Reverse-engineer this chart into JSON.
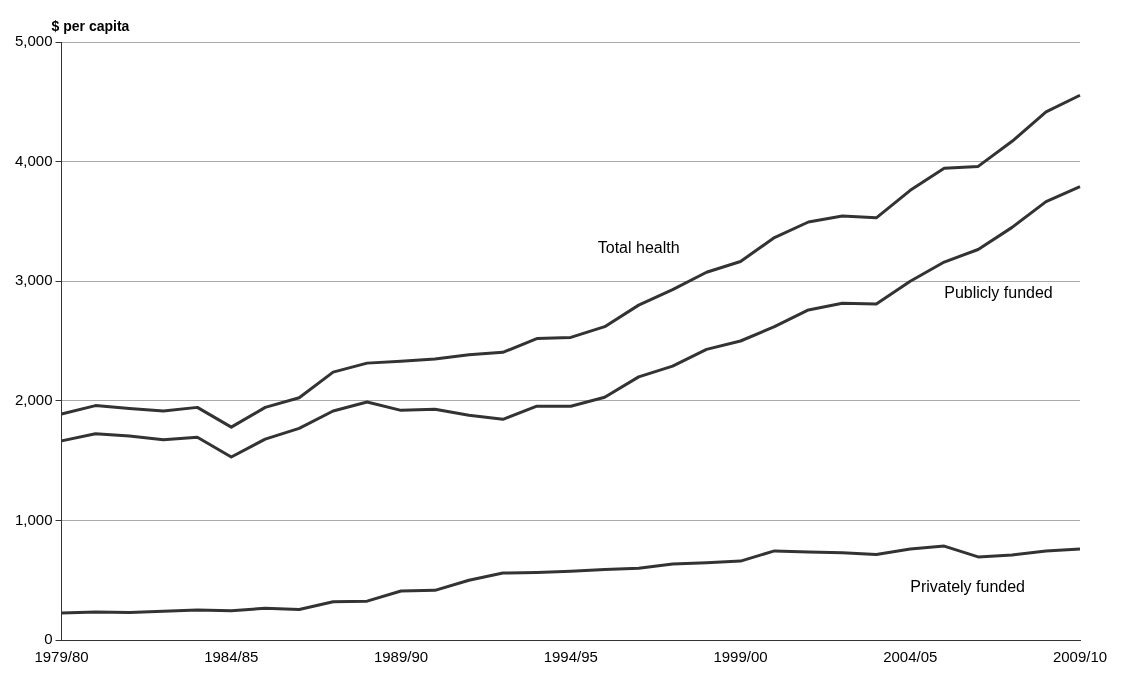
{
  "chart_data": {
    "type": "line",
    "ylabel": "$ per capita",
    "categories": [
      "1979/80",
      null,
      null,
      null,
      null,
      "1984/85",
      null,
      null,
      null,
      null,
      "1989/90",
      null,
      null,
      null,
      null,
      "1994/95",
      null,
      null,
      null,
      null,
      "1999/00",
      null,
      null,
      null,
      null,
      "2004/05",
      null,
      null,
      null,
      null,
      "2009/10"
    ],
    "series": [
      {
        "name": "Total health",
        "color": "#333333",
        "values": [
          1890,
          1960,
          1935,
          1915,
          1945,
          1780,
          1945,
          2025,
          2240,
          2315,
          2330,
          2350,
          2385,
          2405,
          2520,
          2530,
          2620,
          2800,
          2930,
          3075,
          3165,
          3365,
          3495,
          3545,
          3530,
          3760,
          3945,
          3960,
          4170,
          4415,
          4555
        ]
      },
      {
        "name": "Publicly funded",
        "color": "#333333",
        "values": [
          1665,
          1725,
          1705,
          1675,
          1695,
          1530,
          1680,
          1770,
          1915,
          1990,
          1920,
          1930,
          1880,
          1845,
          1955,
          1955,
          2030,
          2200,
          2290,
          2430,
          2500,
          2620,
          2760,
          2815,
          2810,
          3000,
          3160,
          3265,
          3450,
          3665,
          3790
        ]
      },
      {
        "name": "Privately funded",
        "color": "#333333",
        "values": [
          225,
          235,
          230,
          240,
          250,
          245,
          265,
          255,
          320,
          325,
          410,
          415,
          500,
          560,
          565,
          575,
          590,
          600,
          635,
          645,
          660,
          745,
          735,
          730,
          715,
          760,
          785,
          695,
          710,
          745,
          760
        ]
      }
    ],
    "ylim": [
      0,
      5000
    ],
    "yticks": [
      0,
      {
        "value": 1000,
        "label": "1,000"
      },
      {
        "value": 2000,
        "label": "2,000"
      },
      {
        "value": 3000,
        "label": "3,000"
      },
      {
        "value": 4000,
        "label": "4,000"
      },
      {
        "value": 5000,
        "label": "5,000"
      }
    ],
    "grid": "y",
    "legend": false,
    "marker": "none",
    "line_style": "solid"
  }
}
